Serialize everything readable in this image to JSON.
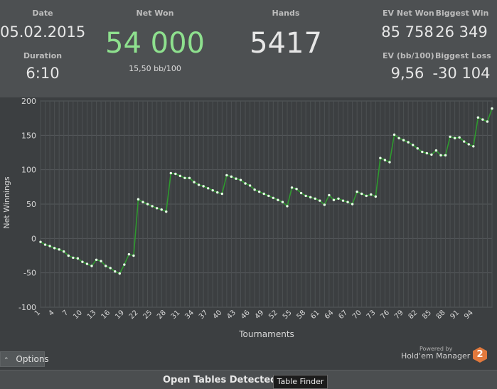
{
  "stats": {
    "date_label": "Date",
    "date_value": "05.02.2015",
    "duration_label": "Duration",
    "duration_value": "6:10",
    "net_won_label": "Net Won",
    "net_won_value": "54 000",
    "net_won_sub": "15,50 bb/100",
    "hands_label": "Hands",
    "hands_value": "5417",
    "ev_net_won_label": "EV Net Won",
    "ev_net_won_value": "85 758",
    "ev_bb100_label": "EV (bb/100)",
    "ev_bb100_value": "9,56",
    "biggest_win_label": "Biggest Win",
    "biggest_win_value": "26 349",
    "biggest_loss_label": "Biggest Loss",
    "biggest_loss_value": "-30 104"
  },
  "chart_data": {
    "type": "line",
    "xlabel": "Tournaments",
    "ylabel": "Net Winnings",
    "ylim": [
      -100,
      200
    ],
    "yticks": [
      -100,
      -50,
      0,
      50,
      100,
      150,
      200
    ],
    "xticks": [
      1,
      4,
      7,
      10,
      13,
      16,
      19,
      22,
      25,
      28,
      31,
      34,
      37,
      40,
      43,
      46,
      49,
      52,
      55,
      58,
      61,
      64,
      67,
      70,
      73,
      76,
      79,
      82,
      85,
      88,
      91,
      94
    ],
    "grid": true,
    "line_color": "#2e9a2e",
    "marker_color": "#e8ffe8",
    "series": [
      {
        "values": [
          -5,
          -9,
          -11,
          -14,
          -16,
          -19,
          -25,
          -28,
          -29,
          -34,
          -37,
          -40,
          -31,
          -33,
          -40,
          -43,
          -48,
          -51,
          -38,
          -23,
          -25,
          57,
          53,
          50,
          47,
          44,
          42,
          39,
          95,
          94,
          91,
          88,
          88,
          82,
          78,
          76,
          73,
          70,
          67,
          65,
          92,
          90,
          87,
          85,
          80,
          77,
          71,
          68,
          65,
          62,
          59,
          56,
          53,
          47,
          74,
          72,
          66,
          62,
          60,
          58,
          55,
          49,
          63,
          56,
          58,
          55,
          53,
          50,
          68,
          65,
          62,
          64,
          61,
          117,
          114,
          111,
          151,
          146,
          143,
          140,
          136,
          131,
          126,
          124,
          122,
          128,
          121,
          121,
          148,
          146,
          147,
          141,
          137,
          134,
          176,
          173,
          170,
          189
        ]
      }
    ]
  },
  "footer": {
    "options_label": "Options",
    "options_icon": "caret-up-icon",
    "powered_by": "Powered by",
    "brand_name": "Hold'em Manager",
    "brand_logo_text": "2"
  },
  "bottom_bar": {
    "open_tables_label": "Open Tables Detected",
    "table_finder_label": "Table Finder"
  }
}
